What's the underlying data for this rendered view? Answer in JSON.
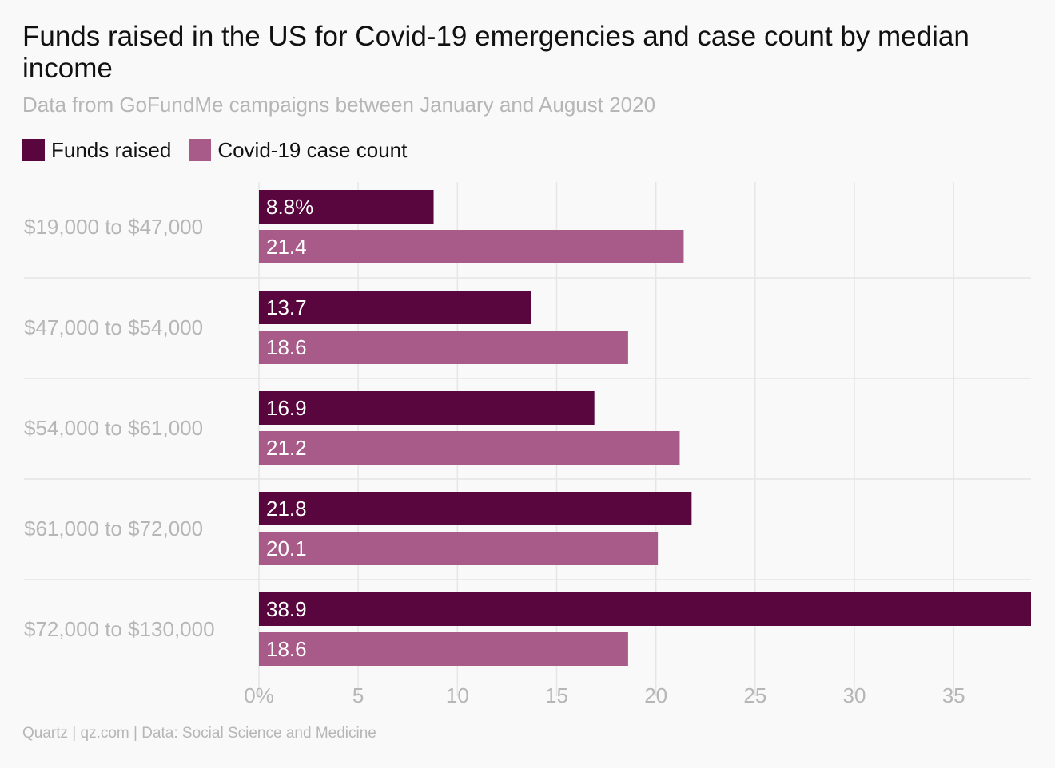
{
  "title": "Funds raised in the US for Covid-19 emergencies and case count by median income",
  "subtitle": "Data from GoFundMe campaigns between January and August 2020",
  "footer": "Quartz | qz.com | Data: Social Science and Medicine",
  "colors": {
    "funds": "#58063d",
    "cases": "#a85a88",
    "grid": "#e6e6e6",
    "axis_text": "#b6b6b6",
    "bar_text": "#ffffff"
  },
  "chart_data": {
    "type": "bar",
    "orientation": "horizontal",
    "categories": [
      "$19,000 to $47,000",
      "$47,000 to $54,000",
      "$54,000 to $61,000",
      "$61,000 to $72,000",
      "$72,000 to $130,000"
    ],
    "series": [
      {
        "name": "Funds raised",
        "values": [
          8.8,
          13.7,
          16.9,
          21.8,
          38.9
        ],
        "labels": [
          "8.8%",
          "13.7",
          "16.9",
          "21.8",
          "38.9"
        ]
      },
      {
        "name": "Covid-19 case count",
        "values": [
          21.4,
          18.6,
          21.2,
          20.1,
          18.6
        ],
        "labels": [
          "21.4",
          "18.6",
          "21.2",
          "20.1",
          "18.6"
        ]
      }
    ],
    "x_ticks": [
      0,
      5,
      10,
      15,
      20,
      25,
      30,
      35
    ],
    "x_tick_labels": [
      "0%",
      "5",
      "10",
      "15",
      "20",
      "25",
      "30",
      "35"
    ],
    "xlim": [
      0,
      38.9
    ],
    "grid": true,
    "legend_position": "top-left"
  }
}
